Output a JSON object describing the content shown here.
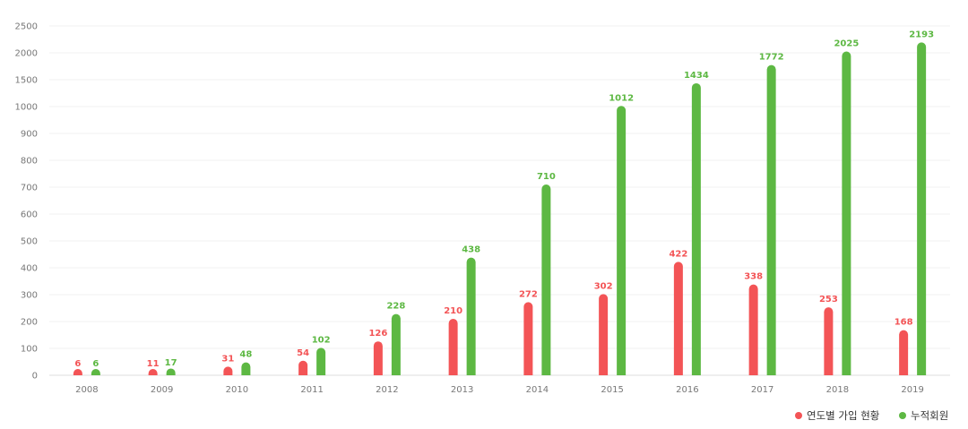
{
  "chart_data": {
    "type": "bar",
    "categories": [
      "2008",
      "2009",
      "2010",
      "2011",
      "2012",
      "2013",
      "2014",
      "2015",
      "2016",
      "2017",
      "2018",
      "2019"
    ],
    "y_ticks": [
      0,
      100,
      200,
      300,
      400,
      500,
      600,
      700,
      800,
      900,
      1000,
      1500,
      2000,
      2500
    ],
    "series": [
      {
        "name": "연도별 가입 현황",
        "color": "#f35456",
        "values": [
          6,
          11,
          31,
          54,
          126,
          210,
          272,
          302,
          422,
          338,
          253,
          168
        ]
      },
      {
        "name": "누적회원",
        "color": "#5db843",
        "values": [
          6,
          17,
          48,
          102,
          228,
          438,
          710,
          1012,
          1434,
          1772,
          2025,
          2193
        ]
      }
    ],
    "grid": true,
    "legend_position": "bottom-right"
  }
}
